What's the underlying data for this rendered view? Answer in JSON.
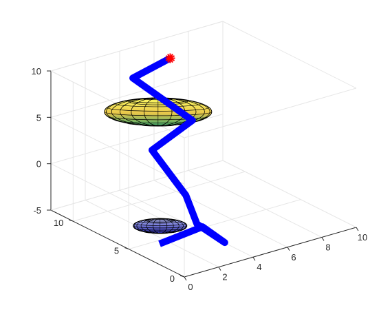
{
  "chart_data": {
    "type": "3d-line",
    "view": "isometric 3-D axes, grid on, box outline",
    "axes": {
      "x": {
        "ticks": [
          0,
          2,
          4,
          6,
          8,
          10
        ],
        "tick_labels": [
          "0",
          "2",
          "4",
          "6",
          "8",
          "10"
        ],
        "lim": [
          0,
          10
        ]
      },
      "y": {
        "ticks": [
          0,
          5,
          10
        ],
        "tick_labels": [
          "0",
          "5",
          "10"
        ],
        "lim": [
          0,
          12
        ]
      },
      "z": {
        "ticks": [
          -5,
          0,
          5,
          10
        ],
        "tick_labels": [
          "-5",
          "0",
          "5",
          "10"
        ],
        "lim": [
          -5,
          10
        ]
      }
    },
    "series": [
      {
        "type": "line",
        "color": "#0000ff",
        "points": [
          [
            0.5,
            3.0,
            -3.5
          ],
          [
            3.0,
            3.0,
            -3.0
          ],
          [
            3.0,
            1.0,
            -3.5
          ],
          [
            3.0,
            3.5,
            -3.0
          ],
          [
            3.0,
            4.5,
            -0.5
          ],
          [
            2.0,
            6.0,
            4.0
          ],
          [
            5.0,
            7.0,
            5.0
          ],
          [
            2.5,
            8.5,
            10.0
          ],
          [
            5.0,
            9.0,
            10.5
          ]
        ]
      }
    ],
    "markers": [
      {
        "type": "star",
        "color": "#ff0000",
        "point": [
          5.0,
          9.0,
          10.5
        ]
      }
    ],
    "spheres": [
      {
        "name": "",
        "center": [
          3.0,
          7.0,
          7.0
        ],
        "radius": [
          3.0,
          3.0,
          1.5
        ],
        "colormap": "yellow-green",
        "edge_color": "#000000"
      },
      {
        "name": "",
        "center": [
          1.5,
          4.5,
          -3.0
        ],
        "radius": [
          1.5,
          1.5,
          0.8
        ],
        "colormap": "blue",
        "edge_color": "#000000"
      }
    ]
  }
}
